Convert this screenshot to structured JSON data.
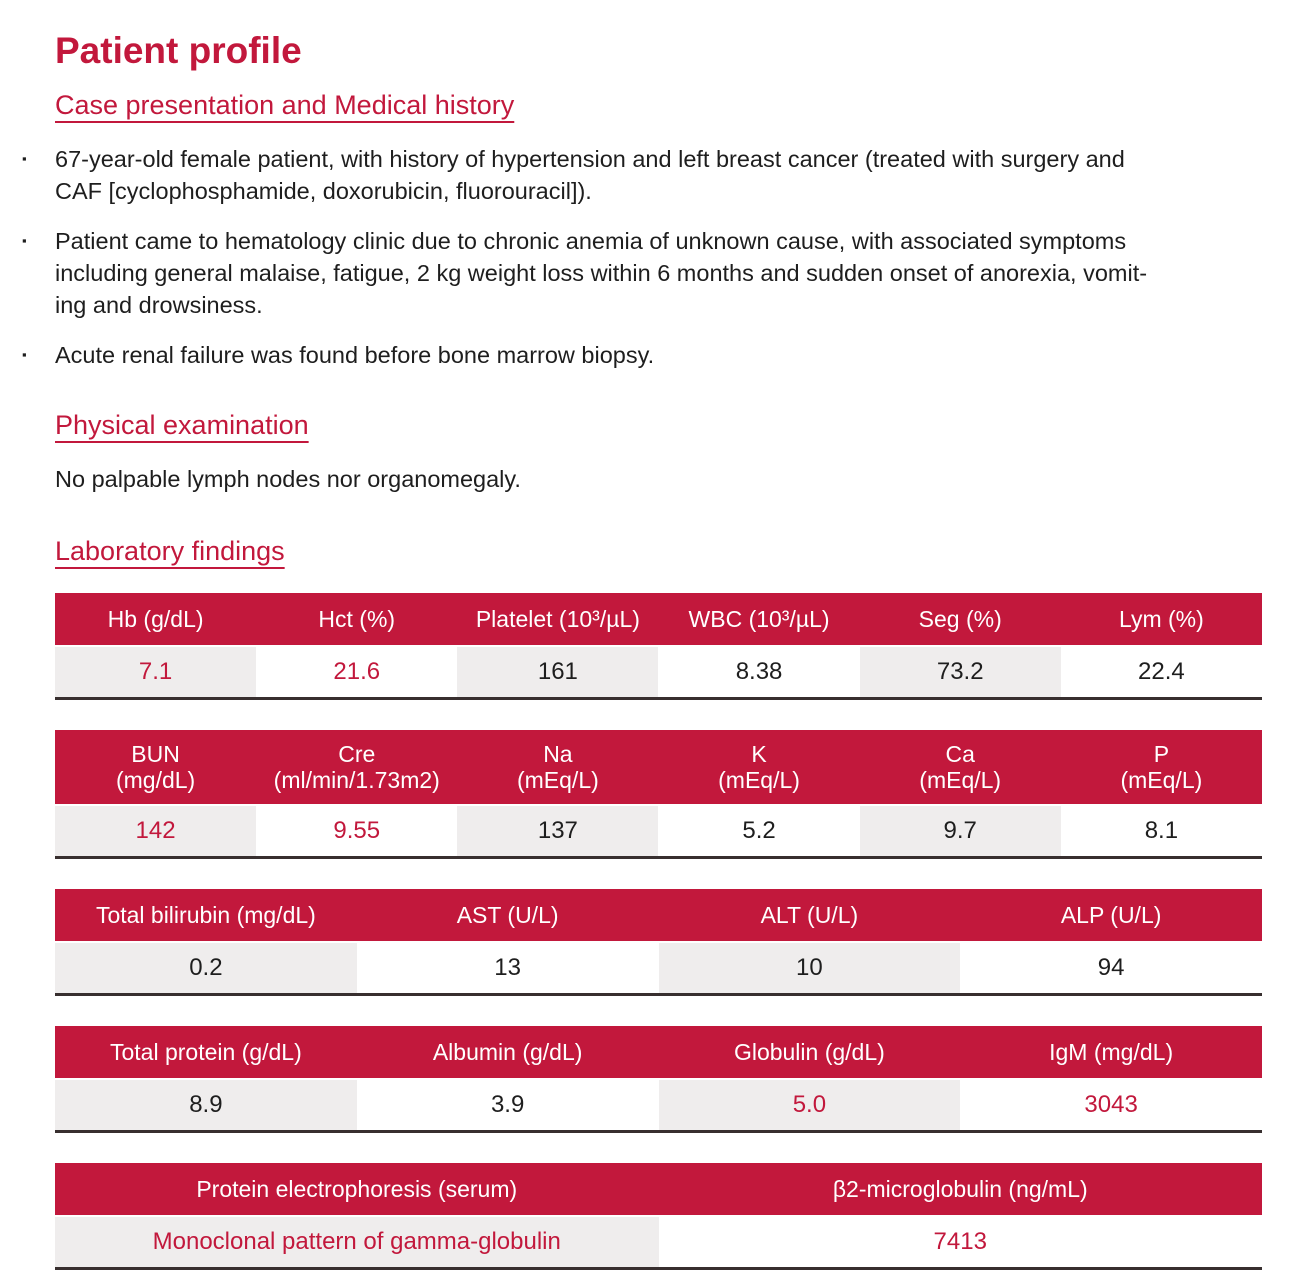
{
  "colors": {
    "accent": "#C2183C",
    "row_alt": "#EFEDED",
    "table_bottom_border": "#382F2F",
    "text": "#1E1E1E"
  },
  "page_title": "Patient profile",
  "case": {
    "heading": "Case presentation and Medical history",
    "bullet_marker": "▪",
    "bullets": [
      "67-year-old female patient, with history of hypertension and left breast cancer (treated with surgery and\nCAF [cyclophosphamide, doxorubicin, fluorouracil]).",
      "Patient came to hematology clinic due to chronic anemia of unknown cause, with associated symptoms\nincluding general malaise, fatigue, 2 kg weight loss within 6 months and sudden onset of anorexia, vomit-\ning and drowsiness.",
      "Acute renal failure was found before bone marrow biopsy."
    ]
  },
  "physical": {
    "heading": "Physical examination",
    "text": "No palpable lymph nodes nor organomegaly."
  },
  "lab": {
    "heading": "Laboratory findings",
    "tables": [
      {
        "name": "complete-blood-count",
        "headers": [
          "Hb (g/dL)",
          "Hct (%)",
          "Platelet (10³/µL)",
          "WBC (10³/µL)",
          "Seg (%)",
          "Lym (%)"
        ],
        "values": [
          "7.1",
          "21.6",
          "161",
          "8.38",
          "73.2",
          "22.4"
        ],
        "abnormal": [
          true,
          true,
          false,
          false,
          false,
          false
        ]
      },
      {
        "name": "renal-electrolytes",
        "headers": [
          "BUN\n(mg/dL)",
          "Cre\n(ml/min/1.73m2)",
          "Na\n(mEq/L)",
          "K\n(mEq/L)",
          "Ca\n(mEq/L)",
          "P\n(mEq/L)"
        ],
        "values": [
          "142",
          "9.55",
          "137",
          "5.2",
          "9.7",
          "8.1"
        ],
        "abnormal": [
          true,
          true,
          false,
          false,
          false,
          false
        ]
      },
      {
        "name": "liver-function",
        "headers": [
          "Total bilirubin (mg/dL)",
          "AST (U/L)",
          "ALT (U/L)",
          "ALP (U/L)"
        ],
        "values": [
          "0.2",
          "13",
          "10",
          "94"
        ],
        "abnormal": [
          false,
          false,
          false,
          false
        ]
      },
      {
        "name": "proteins",
        "headers": [
          "Total protein (g/dL)",
          "Albumin (g/dL)",
          "Globulin (g/dL)",
          "IgM (mg/dL)"
        ],
        "values": [
          "8.9",
          "3.9",
          "5.0",
          "3043"
        ],
        "abnormal": [
          false,
          false,
          true,
          true
        ]
      },
      {
        "name": "electrophoresis",
        "headers": [
          "Protein electrophoresis (serum)",
          "β2-microglobulin (ng/mL)"
        ],
        "values": [
          "Monoclonal pattern of gamma-globulin",
          "7413"
        ],
        "abnormal": [
          true,
          true
        ]
      }
    ]
  }
}
